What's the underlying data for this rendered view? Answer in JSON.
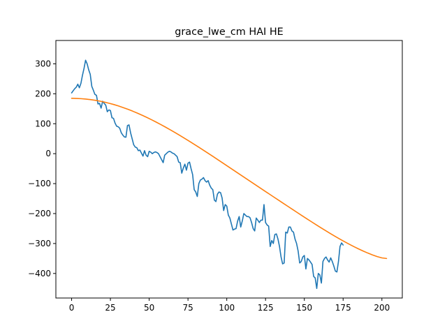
{
  "chart_data": {
    "type": "line",
    "title": "grace_lwe_cm HAI HE",
    "xlabel": "",
    "ylabel": "",
    "xlim": [
      -10.15,
      213.15
    ],
    "ylim": [
      -482,
      378
    ],
    "x_ticks": [
      0,
      25,
      50,
      75,
      100,
      125,
      150,
      175,
      200
    ],
    "y_ticks": [
      300,
      200,
      100,
      0,
      -100,
      -200,
      -300,
      -400
    ],
    "y_tick_labels": [
      "300",
      "200",
      "100",
      "0",
      "−100",
      "−200",
      "−300",
      "−400"
    ],
    "grid": false,
    "legend": "none",
    "series": [
      {
        "color": "#1f77b4",
        "values": [
          203,
          210,
          217,
          222,
          232,
          220,
          235,
          262,
          285,
          312,
          300,
          280,
          265,
          225,
          212,
          198,
          195,
          166,
          168,
          152,
          175,
          168,
          162,
          140,
          146,
          144,
          120,
          118,
          102,
          92,
          90,
          85,
          70,
          62,
          56,
          55,
          94,
          96,
          70,
          50,
          30,
          22,
          20,
          10,
          12,
          2,
          -8,
          10,
          -5,
          -10,
          8,
          5,
          0,
          4,
          6,
          4,
          0,
          -10,
          -20,
          -30,
          -5,
          0,
          5,
          8,
          6,
          2,
          0,
          -5,
          -10,
          -28,
          -30,
          -65,
          -48,
          -35,
          -55,
          -32,
          -28,
          -50,
          -70,
          -120,
          -128,
          -143,
          -100,
          -88,
          -85,
          -80,
          -90,
          -95,
          -90,
          -105,
          -115,
          -120,
          -155,
          -160,
          -135,
          -128,
          -130,
          -148,
          -190,
          -170,
          -175,
          -205,
          -215,
          -235,
          -255,
          -252,
          -250,
          -225,
          -210,
          -245,
          -225,
          -200,
          -205,
          -210,
          -210,
          -214,
          -230,
          -250,
          -258,
          -215,
          -222,
          -230,
          -222,
          -222,
          -170,
          -230,
          -238,
          -242,
          -310,
          -290,
          -300,
          -270,
          -268,
          -285,
          -310,
          -345,
          -368,
          -365,
          -262,
          -265,
          -245,
          -245,
          -258,
          -262,
          -285,
          -300,
          -325,
          -365,
          -360,
          -345,
          -340,
          -385,
          -350,
          -355,
          -362,
          -370,
          -410,
          -415,
          -450,
          -400,
          -405,
          -432,
          -360,
          -350,
          -345,
          -355,
          -362,
          -348,
          -360,
          -375,
          -392,
          -395,
          -360,
          -310,
          -298,
          -305
        ]
      },
      {
        "color": "#ff7f0e",
        "values": [
          185,
          184.5,
          183.7,
          182.4,
          180.6,
          178.3,
          175.5,
          172.2,
          168.3,
          164,
          159.1,
          153.8,
          148.1,
          141.9,
          135.3,
          128.3,
          121,
          113.3,
          105.3,
          97,
          88.4,
          79.6,
          70.5,
          61.2,
          51.7,
          42,
          32.1,
          22.1,
          12,
          1.8,
          -8.5,
          -18.9,
          -29.4,
          -39.9,
          -50.4,
          -60.9,
          -71.4,
          -81.9,
          -92.4,
          -102.9,
          -113.3,
          -123.8,
          -134.2,
          -144.6,
          -155,
          -165.4,
          -175.8,
          -186.2,
          -196.5,
          -206.8,
          -217,
          -227.1,
          -237.1,
          -247,
          -256.7,
          -266.2,
          -275.5,
          -284.6,
          -293.4,
          -301.9,
          -310,
          -317.7,
          -325,
          -331.8,
          -338,
          -343.6,
          -348,
          -350
        ]
      }
    ]
  }
}
